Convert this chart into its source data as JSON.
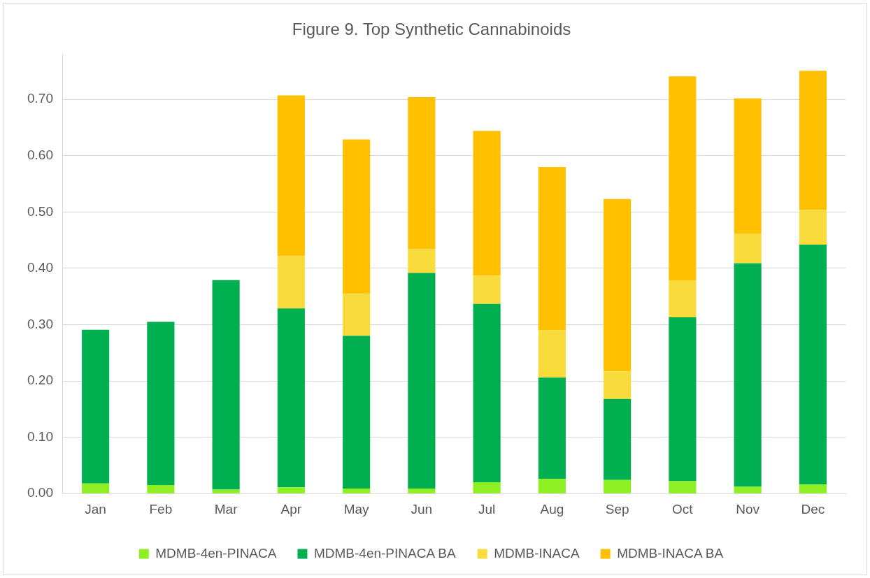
{
  "chart_data": {
    "type": "bar",
    "title": "Figure 9. Top Synthetic Cannabinoids",
    "stacked": true,
    "grid": "y",
    "legend": "bottom",
    "categories": [
      "Jan",
      "Feb",
      "Mar",
      "Apr",
      "May",
      "Jun",
      "Jul",
      "Aug",
      "Sep",
      "Oct",
      "Nov",
      "Dec"
    ],
    "ylim": [
      0,
      0.78
    ],
    "yticks": [
      {
        "value": 0,
        "label": "0.00"
      },
      {
        "value": 0.1,
        "label": "0.10"
      },
      {
        "value": 0.2,
        "label": "0.20"
      },
      {
        "value": 0.3,
        "label": "0.30"
      },
      {
        "value": 0.4,
        "label": "0.40"
      },
      {
        "value": 0.5,
        "label": "0.50"
      },
      {
        "value": 0.6,
        "label": "0.60"
      },
      {
        "value": 0.7,
        "label": "0.70"
      }
    ],
    "series": [
      {
        "name": "MDMB-4en-PINACA",
        "color": "#8ef022",
        "values": [
          0.018,
          0.015,
          0.007,
          0.011,
          0.009,
          0.009,
          0.02,
          0.026,
          0.024,
          0.022,
          0.012,
          0.016
        ]
      },
      {
        "name": "MDMB-4en-PINACA BA",
        "color": "#00b050",
        "values": [
          0.273,
          0.29,
          0.372,
          0.318,
          0.271,
          0.383,
          0.317,
          0.18,
          0.144,
          0.291,
          0.397,
          0.426
        ]
      },
      {
        "name": "MDMB-INACA",
        "color": "#f9dc3c",
        "values": [
          0,
          0,
          0,
          0.093,
          0.075,
          0.042,
          0.05,
          0.084,
          0.049,
          0.065,
          0.052,
          0.062
        ]
      },
      {
        "name": "MDMB-INACA BA",
        "color": "#ffc000",
        "values": [
          0,
          0,
          0,
          0.285,
          0.274,
          0.27,
          0.257,
          0.29,
          0.306,
          0.363,
          0.241,
          0.247
        ]
      }
    ]
  }
}
